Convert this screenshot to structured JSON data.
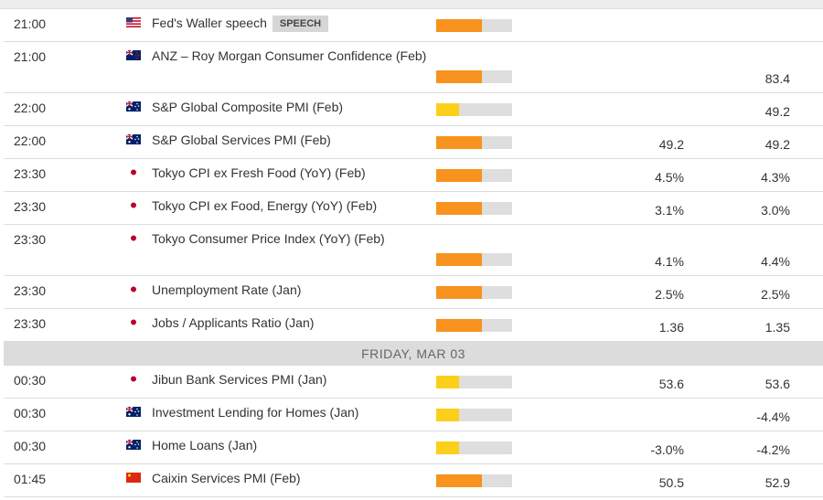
{
  "colors": {
    "high": "#f7931e",
    "medium": "#fccf1b",
    "bar_bg": "#dedede"
  },
  "rows_before": [
    {
      "time": "21:00",
      "flag": "us-flag",
      "name": "Fed's Waller speech",
      "badge": "SPEECH",
      "impact": "high",
      "v1": "",
      "v2": "",
      "tall": false
    },
    {
      "time": "21:00",
      "flag": "nz-flag",
      "name": "ANZ – Roy Morgan Consumer Confidence (Feb)",
      "impact": "high",
      "v1": "",
      "v2": "83.4",
      "tall": true
    },
    {
      "time": "22:00",
      "flag": "au-flag",
      "name": "S&P Global Composite PMI (Feb)",
      "impact": "medium",
      "v1": "",
      "v2": "49.2",
      "tall": false
    },
    {
      "time": "22:00",
      "flag": "au-flag",
      "name": "S&P Global Services PMI (Feb)",
      "impact": "high",
      "v1": "49.2",
      "v2": "49.2",
      "tall": false
    },
    {
      "time": "23:30",
      "flag": "jp-flag",
      "name": "Tokyo CPI ex Fresh Food (YoY) (Feb)",
      "impact": "high",
      "v1": "4.5%",
      "v2": "4.3%",
      "tall": false
    },
    {
      "time": "23:30",
      "flag": "jp-flag",
      "name": "Tokyo CPI ex Food, Energy (YoY) (Feb)",
      "impact": "high",
      "v1": "3.1%",
      "v2": "3.0%",
      "tall": false
    },
    {
      "time": "23:30",
      "flag": "jp-flag",
      "name": "Tokyo Consumer Price Index (YoY) (Feb)",
      "impact": "high",
      "v1": "4.1%",
      "v2": "4.4%",
      "tall": true
    },
    {
      "time": "23:30",
      "flag": "jp-flag",
      "name": "Unemployment Rate (Jan)",
      "impact": "high",
      "v1": "2.5%",
      "v2": "2.5%",
      "tall": false
    },
    {
      "time": "23:30",
      "flag": "jp-flag",
      "name": "Jobs / Applicants Ratio (Jan)",
      "impact": "high",
      "v1": "1.36",
      "v2": "1.35",
      "tall": false
    }
  ],
  "day_header": "FRIDAY, MAR 03",
  "rows_after": [
    {
      "time": "00:30",
      "flag": "jp-flag",
      "name": "Jibun Bank Services PMI (Jan)",
      "impact": "medium",
      "v1": "53.6",
      "v2": "53.6",
      "tall": false
    },
    {
      "time": "00:30",
      "flag": "au-flag",
      "name": "Investment Lending for Homes (Jan)",
      "impact": "medium",
      "v1": "",
      "v2": "-4.4%",
      "tall": false
    },
    {
      "time": "00:30",
      "flag": "au-flag",
      "name": "Home Loans (Jan)",
      "impact": "medium",
      "v1": "-3.0%",
      "v2": "-4.2%",
      "tall": false
    },
    {
      "time": "01:45",
      "flag": "cn-flag",
      "name": "Caixin Services PMI (Feb)",
      "impact": "high",
      "v1": "50.5",
      "v2": "52.9",
      "tall": false
    }
  ]
}
